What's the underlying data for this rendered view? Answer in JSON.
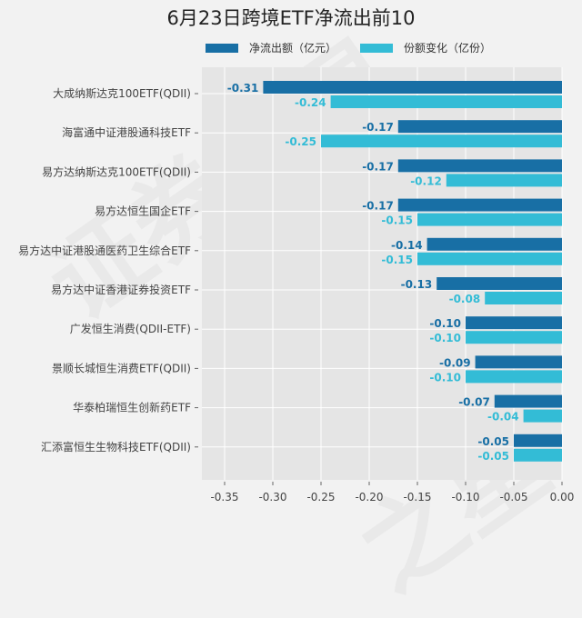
{
  "chart_data": {
    "type": "bar",
    "orientation": "horizontal",
    "title": "6月23日跨境ETF净流出前10",
    "categories": [
      "大成纳斯达克100ETF(QDII)",
      "海富通中证港股通科技ETF",
      "易方达纳斯达克100ETF(QDII)",
      "易方达恒生国企ETF",
      "易方达中证港股通医药卫生综合ETF",
      "易方达中证香港证券投资ETF",
      "广发恒生消费(QDII-ETF)",
      "景顺长城恒生消费ETF(QDII)",
      "华泰柏瑞恒生创新药ETF",
      "汇添富恒生生物科技ETF(QDII)"
    ],
    "series": [
      {
        "name": "净流出额（亿元）",
        "color": "#186fa5",
        "values": [
          -0.31,
          -0.17,
          -0.17,
          -0.17,
          -0.14,
          -0.13,
          -0.1,
          -0.09,
          -0.07,
          -0.05
        ],
        "labels": [
          "-0.31",
          "-0.17",
          "-0.17",
          "-0.17",
          "-0.14",
          "-0.13",
          "-0.10",
          "-0.09",
          "-0.07",
          "-0.05"
        ]
      },
      {
        "name": "份额变化（亿份）",
        "color": "#33bcd6",
        "values": [
          -0.24,
          -0.25,
          -0.12,
          -0.15,
          -0.15,
          -0.08,
          -0.1,
          -0.1,
          -0.04,
          -0.05
        ],
        "labels": [
          "-0.24",
          "-0.25",
          "-0.12",
          "-0.15",
          "-0.15",
          "-0.08",
          "-0.10",
          "-0.10",
          "-0.04",
          "-0.05"
        ]
      }
    ],
    "xlim": [
      -0.37,
      0.0
    ],
    "xticks": [
      -0.35,
      -0.3,
      -0.25,
      -0.2,
      -0.15,
      -0.1,
      -0.05,
      0.0
    ],
    "xtick_labels": [
      "-0.35",
      "-0.30",
      "-0.25",
      "-0.20",
      "-0.15",
      "-0.10",
      "-0.05",
      "0.00"
    ],
    "xlabel": "",
    "ylabel": "",
    "grid": true,
    "legend_position": "top"
  },
  "watermark": "证券之星"
}
